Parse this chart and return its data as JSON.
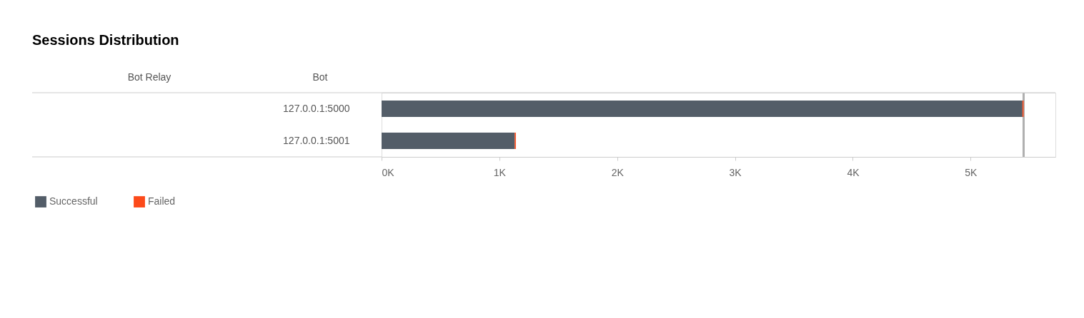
{
  "chart_data": {
    "type": "bar",
    "orientation": "horizontal",
    "stacked": true,
    "title": "Sessions Distribution",
    "ylabel": "Bot",
    "annotations": [
      "Bot Relay"
    ],
    "categories": [
      "127.0.0.1:5000",
      "127.0.0.1:5001"
    ],
    "series": [
      {
        "name": "Successful",
        "color": "#535d68",
        "values": [
          5440,
          1130
        ]
      },
      {
        "name": "Failed",
        "color": "#fc4a1a",
        "values": [
          10,
          10
        ]
      }
    ],
    "xlim": [
      0,
      5720
    ],
    "xticks": [
      {
        "value": 0,
        "label": "0K"
      },
      {
        "value": 1000,
        "label": "1K"
      },
      {
        "value": 2000,
        "label": "2K"
      },
      {
        "value": 3000,
        "label": "3K"
      },
      {
        "value": 4000,
        "label": "4K"
      },
      {
        "value": 5000,
        "label": "5K"
      }
    ],
    "ref_lines": [
      {
        "axis": "x",
        "value": 5450,
        "label": null,
        "color": "#b0b0b0"
      }
    ],
    "grid": false,
    "legend": "bottom left"
  }
}
